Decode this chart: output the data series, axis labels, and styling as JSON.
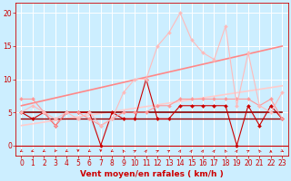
{
  "title": "",
  "xlabel": "Vent moyen/en rafales ( km/h )",
  "bg_color": "#cceeff",
  "grid_color": "#ffffff",
  "x_ticks": [
    0,
    1,
    2,
    3,
    4,
    5,
    6,
    7,
    8,
    9,
    10,
    11,
    12,
    13,
    14,
    15,
    16,
    17,
    18,
    19,
    20,
    21,
    22,
    23
  ],
  "y_ticks": [
    0,
    5,
    10,
    15,
    20
  ],
  "ylim": [
    -1.5,
    21.5
  ],
  "xlim": [
    -0.5,
    23.5
  ],
  "series": [
    {
      "x": [
        0,
        1,
        2,
        3,
        4,
        5,
        6,
        7,
        8,
        9,
        10,
        11,
        12,
        13,
        14,
        15,
        16,
        17,
        18,
        19,
        20,
        21,
        22,
        23
      ],
      "y": [
        5,
        4,
        5,
        3,
        5,
        5,
        5,
        0,
        5,
        4,
        4,
        10,
        4,
        4,
        6,
        6,
        6,
        6,
        6,
        0,
        6,
        3,
        6,
        4
      ],
      "color": "#cc0000",
      "lw": 0.8,
      "marker": "D",
      "ms": 2.0,
      "zorder": 5
    },
    {
      "x": [
        0,
        1,
        2,
        3,
        4,
        5,
        6,
        7,
        8,
        9,
        10,
        11,
        12,
        13,
        14,
        15,
        16,
        17,
        18,
        19,
        20,
        21,
        22,
        23
      ],
      "y": [
        5,
        5,
        5,
        5,
        5,
        5,
        5,
        5,
        5,
        5,
        5,
        5,
        5,
        5,
        5,
        5,
        5,
        5,
        5,
        5,
        5,
        5,
        5,
        5
      ],
      "color": "#880000",
      "lw": 1.2,
      "marker": null,
      "ms": 0,
      "zorder": 4
    },
    {
      "x": [
        0,
        1,
        2,
        3,
        4,
        5,
        6,
        7,
        8,
        9,
        10,
        11,
        12,
        13,
        14,
        15,
        16,
        17,
        18,
        19,
        20,
        21,
        22,
        23
      ],
      "y": [
        4,
        4,
        4,
        4,
        4,
        4,
        4,
        4,
        4,
        4,
        4,
        4,
        4,
        4,
        4,
        4,
        4,
        4,
        4,
        4,
        4,
        4,
        4,
        4
      ],
      "color": "#990000",
      "lw": 1.0,
      "marker": null,
      "ms": 0,
      "zorder": 3
    },
    {
      "x": [
        0,
        1,
        2,
        3,
        4,
        5,
        6,
        7,
        8,
        9,
        10,
        11,
        12,
        13,
        14,
        15,
        16,
        17,
        18,
        19,
        20,
        21,
        22,
        23
      ],
      "y": [
        7,
        7,
        5,
        3,
        5,
        5,
        4,
        3,
        4,
        5,
        5,
        5,
        6,
        6,
        7,
        7,
        7,
        7,
        7,
        7,
        7,
        6,
        7,
        4
      ],
      "color": "#ff9999",
      "lw": 0.8,
      "marker": "D",
      "ms": 2.0,
      "zorder": 5
    },
    {
      "x": [
        0,
        1,
        2,
        3,
        4,
        5,
        6,
        7,
        8,
        9,
        10,
        11,
        12,
        13,
        14,
        15,
        16,
        17,
        18,
        19,
        20,
        21,
        22,
        23
      ],
      "y": [
        5,
        6,
        5,
        4,
        5,
        4,
        5,
        3,
        4,
        8,
        10,
        10,
        15,
        17,
        20,
        16,
        14,
        13,
        18,
        6,
        14,
        6,
        5,
        8
      ],
      "color": "#ffbbbb",
      "lw": 0.8,
      "marker": "D",
      "ms": 2.0,
      "zorder": 5
    },
    {
      "x": [
        0,
        23
      ],
      "y": [
        3,
        9
      ],
      "color": "#ffcccc",
      "lw": 1.2,
      "marker": null,
      "ms": 0,
      "zorder": 2
    },
    {
      "x": [
        0,
        23
      ],
      "y": [
        6,
        15
      ],
      "color": "#ff8888",
      "lw": 1.2,
      "marker": null,
      "ms": 0,
      "zorder": 2
    }
  ],
  "wind_dirs": [
    225,
    247,
    225,
    202,
    225,
    180,
    225,
    180,
    225,
    337,
    45,
    22,
    45,
    45,
    22,
    22,
    22,
    22,
    337,
    22,
    45,
    337,
    0,
    135
  ],
  "font_color": "#cc0000",
  "tick_font_size": 5.5,
  "label_font_size": 6.5
}
